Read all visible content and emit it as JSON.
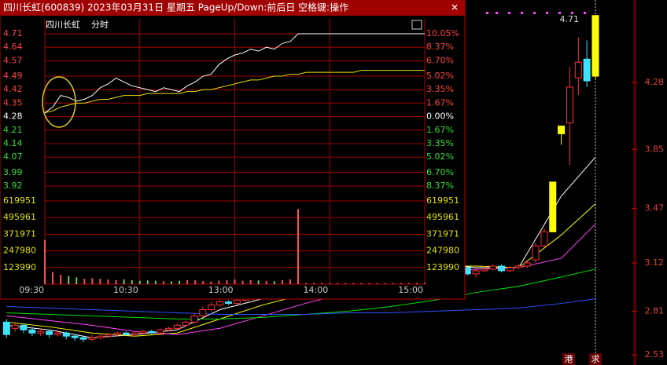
{
  "window": {
    "title": "四川长虹(600839) 2023年03月31日 星期五 PageUp/Down:前后日 空格键:操作"
  },
  "intraday": {
    "stock_name": "四川长虹",
    "mode": "分时",
    "price_ticks": [
      4.71,
      4.64,
      4.57,
      4.49,
      4.42,
      4.35,
      4.28,
      4.21,
      4.14,
      4.07,
      3.99,
      3.92
    ],
    "pct_ticks": [
      "10.05%",
      "8.37%",
      "6.70%",
      "5.02%",
      "3.35%",
      "1.67%",
      "0.00%",
      "1.67%",
      "3.35%",
      "5.02%",
      "6.70%",
      "8.37%"
    ],
    "volume_ticks": [
      619951,
      495961,
      371971,
      247980,
      123990
    ],
    "time_labels": [
      "09:30",
      "10:30",
      "13:00",
      "14:00",
      "15:00"
    ],
    "prices": [
      4.3,
      4.33,
      4.39,
      4.38,
      4.36,
      4.37,
      4.39,
      4.43,
      4.45,
      4.48,
      4.46,
      4.44,
      4.43,
      4.42,
      4.41,
      4.43,
      4.42,
      4.41,
      4.44,
      4.46,
      4.49,
      4.5,
      4.55,
      4.58,
      4.6,
      4.61,
      4.63,
      4.62,
      4.64,
      4.63,
      4.66,
      4.67,
      4.71,
      4.71,
      4.71,
      4.71,
      4.71,
      4.71,
      4.71,
      4.71,
      4.71,
      4.71,
      4.71,
      4.71,
      4.71,
      4.71,
      4.71,
      4.71,
      4.71
    ],
    "avg": [
      4.3,
      4.31,
      4.33,
      4.34,
      4.35,
      4.35,
      4.36,
      4.37,
      4.37,
      4.38,
      4.39,
      4.39,
      4.39,
      4.4,
      4.4,
      4.4,
      4.4,
      4.4,
      4.41,
      4.41,
      4.42,
      4.42,
      4.43,
      4.44,
      4.45,
      4.46,
      4.47,
      4.47,
      4.48,
      4.49,
      4.49,
      4.5,
      4.5,
      4.51,
      4.51,
      4.51,
      4.51,
      4.51,
      4.51,
      4.51,
      4.52,
      4.52,
      4.52,
      4.52,
      4.52,
      4.52,
      4.52,
      4.52,
      4.52
    ],
    "volumes": [
      330000,
      90000,
      70000,
      60000,
      50000,
      40000,
      45000,
      40000,
      35000,
      30000,
      35000,
      30000,
      25000,
      28000,
      25000,
      22000,
      20000,
      25000,
      30000,
      28000,
      22000,
      20000,
      26000,
      30000,
      35000,
      25000,
      30000,
      28000,
      24000,
      22000,
      30000,
      35000,
      560000,
      8000,
      8000,
      8000,
      8000,
      8000,
      8000,
      8000,
      8000,
      8000,
      8000,
      8000,
      8000,
      8000,
      8000,
      8000,
      8000
    ]
  },
  "daily": {
    "axis_ticks": [
      4.28,
      3.85,
      3.47,
      3.12,
      2.81,
      2.53
    ],
    "high_label": "4.71",
    "limit_up": [
      64,
      65,
      69
    ],
    "candles": [
      [
        2.74,
        2.66,
        2.76,
        2.64
      ],
      [
        2.7,
        2.72,
        2.74,
        2.68
      ],
      [
        2.72,
        2.69,
        2.73,
        2.67
      ],
      [
        2.69,
        2.67,
        2.71,
        2.65
      ],
      [
        2.67,
        2.68,
        2.7,
        2.65
      ],
      [
        2.68,
        2.66,
        2.69,
        2.64
      ],
      [
        2.66,
        2.67,
        2.69,
        2.65
      ],
      [
        2.67,
        2.65,
        2.68,
        2.63
      ],
      [
        2.65,
        2.64,
        2.66,
        2.62
      ],
      [
        2.64,
        2.63,
        2.65,
        2.61
      ],
      [
        2.63,
        2.64,
        2.66,
        2.62
      ],
      [
        2.64,
        2.65,
        2.66,
        2.63
      ],
      [
        2.65,
        2.66,
        2.67,
        2.64
      ],
      [
        2.66,
        2.67,
        2.68,
        2.65
      ],
      [
        2.67,
        2.66,
        2.68,
        2.65
      ],
      [
        2.66,
        2.67,
        2.68,
        2.65
      ],
      [
        2.67,
        2.68,
        2.69,
        2.66
      ],
      [
        2.68,
        2.67,
        2.69,
        2.66
      ],
      [
        2.67,
        2.69,
        2.7,
        2.66
      ],
      [
        2.69,
        2.7,
        2.71,
        2.68
      ],
      [
        2.7,
        2.72,
        2.73,
        2.69
      ],
      [
        2.72,
        2.74,
        2.75,
        2.71
      ],
      [
        2.74,
        2.78,
        2.8,
        2.73
      ],
      [
        2.78,
        2.82,
        2.84,
        2.77
      ],
      [
        2.82,
        2.85,
        2.87,
        2.81
      ],
      [
        2.85,
        2.87,
        2.88,
        2.84
      ],
      [
        2.87,
        2.86,
        2.88,
        2.85
      ],
      [
        2.86,
        2.88,
        2.89,
        2.85
      ],
      [
        2.88,
        2.89,
        2.9,
        2.87
      ],
      [
        2.89,
        2.9,
        2.91,
        2.88
      ],
      [
        2.9,
        2.92,
        2.93,
        2.89
      ],
      [
        2.92,
        2.94,
        2.95,
        2.91
      ],
      [
        2.94,
        2.93,
        2.96,
        2.92
      ],
      [
        2.93,
        2.95,
        2.96,
        2.92
      ],
      [
        2.95,
        2.97,
        2.98,
        2.94
      ],
      [
        2.97,
        2.98,
        3.0,
        2.96
      ],
      [
        2.98,
        3.0,
        3.01,
        2.97
      ],
      [
        3.0,
        3.02,
        3.03,
        2.99
      ],
      [
        3.02,
        3.01,
        3.04,
        3.0
      ],
      [
        3.01,
        3.03,
        3.04,
        3.0
      ],
      [
        3.03,
        3.05,
        3.06,
        3.02
      ],
      [
        3.05,
        3.06,
        3.08,
        3.04
      ],
      [
        3.06,
        3.08,
        3.1,
        3.05
      ],
      [
        3.08,
        3.07,
        3.1,
        3.06
      ],
      [
        3.07,
        3.09,
        3.11,
        3.06
      ],
      [
        3.09,
        3.1,
        3.12,
        3.08
      ],
      [
        3.1,
        3.11,
        3.13,
        3.09
      ],
      [
        3.11,
        3.12,
        3.14,
        3.1
      ],
      [
        3.12,
        3.11,
        3.14,
        3.1
      ],
      [
        3.11,
        3.12,
        3.13,
        3.1
      ],
      [
        3.12,
        3.13,
        3.14,
        3.11
      ],
      [
        3.13,
        3.1,
        3.14,
        3.09
      ],
      [
        3.1,
        3.09,
        3.12,
        3.08
      ],
      [
        3.09,
        3.11,
        3.12,
        3.08
      ],
      [
        3.09,
        3.05,
        3.1,
        3.04
      ],
      [
        3.05,
        3.07,
        3.09,
        3.03
      ],
      [
        3.07,
        3.08,
        3.1,
        3.06
      ],
      [
        3.08,
        3.1,
        3.11,
        3.07
      ],
      [
        3.1,
        3.07,
        3.11,
        3.06
      ],
      [
        3.07,
        3.09,
        3.1,
        3.06
      ],
      [
        3.09,
        3.1,
        3.11,
        3.08
      ],
      [
        3.1,
        3.12,
        3.14,
        3.09
      ],
      [
        3.14,
        3.23,
        3.25,
        3.12
      ],
      [
        3.23,
        3.32,
        3.34,
        3.22
      ],
      [
        3.32,
        3.64,
        3.64,
        3.32
      ],
      [
        3.95,
        4.0,
        4.0,
        3.88
      ],
      [
        4.02,
        4.25,
        4.38,
        3.75
      ],
      [
        4.31,
        4.41,
        4.57,
        4.2
      ],
      [
        4.43,
        4.29,
        4.55,
        4.25
      ],
      [
        4.32,
        4.71,
        4.71,
        4.3
      ]
    ],
    "ma_index": [
      0,
      5,
      10,
      15,
      20,
      25,
      30,
      35,
      40,
      45,
      50,
      55,
      60,
      65,
      69
    ],
    "ma": [
      {
        "color": "#ffffff",
        "values": [
          2.72,
          2.69,
          2.64,
          2.66,
          2.69,
          2.82,
          2.89,
          2.95,
          3.02,
          3.07,
          3.12,
          3.09,
          3.09,
          3.55,
          3.8
        ]
      },
      {
        "color": "#ffff00",
        "values": [
          2.74,
          2.71,
          2.67,
          2.65,
          2.67,
          2.76,
          2.85,
          2.92,
          2.99,
          3.05,
          3.1,
          3.1,
          3.09,
          3.3,
          3.5
        ]
      },
      {
        "color": "#ff40ff",
        "values": [
          2.78,
          2.75,
          2.72,
          2.68,
          2.66,
          2.7,
          2.78,
          2.86,
          2.93,
          3.0,
          3.06,
          3.08,
          3.09,
          3.15,
          3.37
        ]
      },
      {
        "color": "#00e000",
        "values": [
          2.8,
          2.79,
          2.78,
          2.77,
          2.76,
          2.76,
          2.77,
          2.79,
          2.81,
          2.84,
          2.88,
          2.93,
          2.97,
          3.03,
          3.08
        ]
      },
      {
        "color": "#3050ff",
        "values": [
          2.84,
          2.83,
          2.82,
          2.81,
          2.8,
          2.79,
          2.79,
          2.79,
          2.8,
          2.8,
          2.81,
          2.82,
          2.83,
          2.86,
          2.89
        ]
      }
    ]
  },
  "footer": {
    "left": "港",
    "right": "求"
  }
}
